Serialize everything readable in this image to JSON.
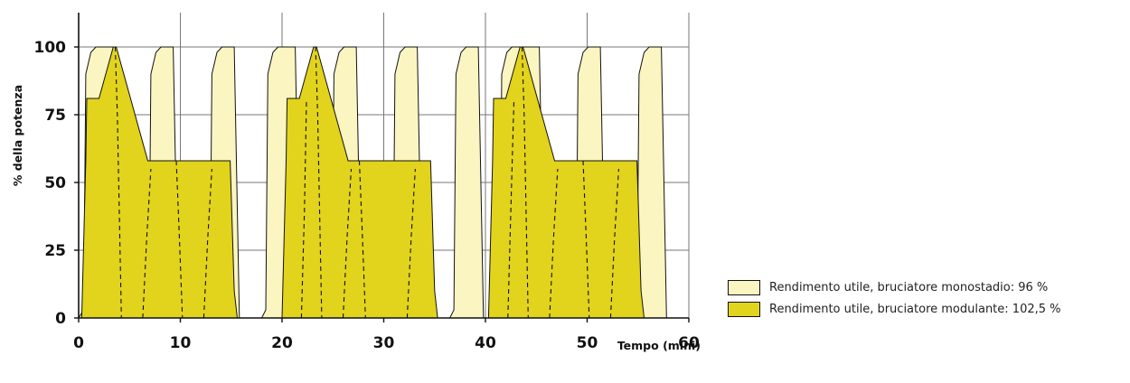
{
  "chart_data": {
    "type": "area",
    "xlabel": "Tempo (mini)",
    "ylabel": "% della potenza",
    "xlim": [
      0,
      60
    ],
    "ylim": [
      0,
      100
    ],
    "x_ticks": [
      "0",
      "10",
      "20",
      "30",
      "40",
      "50",
      "60"
    ],
    "y_ticks": [
      "0",
      "25",
      "50",
      "75",
      "100"
    ],
    "grid": true,
    "legend_position": "right",
    "colors": {
      "monostadio": "#fbf5c2",
      "modulante": "#e2d31c",
      "outline": "#111111"
    },
    "series": [
      {
        "name": "Rendimento utile, bruciatore monostadio: 96 %",
        "segments": [
          [
            [
              0,
              0
            ],
            [
              0.5,
              3
            ],
            [
              0.7,
              90
            ],
            [
              1.2,
              98
            ],
            [
              1.7,
              100
            ],
            [
              3.4,
              100
            ],
            [
              3.9,
              0
            ]
          ],
          [
            [
              6.5,
              0
            ],
            [
              6.9,
              3
            ],
            [
              7.1,
              90
            ],
            [
              7.6,
              98
            ],
            [
              8.1,
              100
            ],
            [
              9.3,
              100
            ],
            [
              9.8,
              0
            ]
          ],
          [
            [
              12.5,
              0
            ],
            [
              12.9,
              3
            ],
            [
              13.1,
              90
            ],
            [
              13.6,
              98
            ],
            [
              14.1,
              100
            ],
            [
              15.3,
              100
            ],
            [
              15.8,
              0
            ]
          ],
          [
            [
              18,
              0
            ],
            [
              18.4,
              3
            ],
            [
              18.6,
              90
            ],
            [
              19.1,
              98
            ],
            [
              19.6,
              100
            ],
            [
              21.3,
              100
            ],
            [
              21.8,
              0
            ]
          ],
          [
            [
              24.5,
              0
            ],
            [
              24.9,
              3
            ],
            [
              25.1,
              90
            ],
            [
              25.6,
              98
            ],
            [
              26.1,
              100
            ],
            [
              27.3,
              100
            ],
            [
              27.8,
              0
            ]
          ],
          [
            [
              30.5,
              0
            ],
            [
              30.9,
              3
            ],
            [
              31.1,
              90
            ],
            [
              31.6,
              98
            ],
            [
              32.1,
              100
            ],
            [
              33.3,
              100
            ],
            [
              33.8,
              0
            ]
          ],
          [
            [
              36.5,
              0
            ],
            [
              36.9,
              3
            ],
            [
              37.1,
              90
            ],
            [
              37.6,
              98
            ],
            [
              38.1,
              100
            ],
            [
              39.3,
              100
            ],
            [
              39.8,
              0
            ]
          ],
          [
            [
              41,
              0
            ],
            [
              41.4,
              3
            ],
            [
              41.6,
              90
            ],
            [
              42.1,
              98
            ],
            [
              42.6,
              100
            ],
            [
              45.3,
              100
            ],
            [
              45.8,
              0
            ]
          ],
          [
            [
              48.5,
              0
            ],
            [
              48.9,
              3
            ],
            [
              49.1,
              90
            ],
            [
              49.6,
              98
            ],
            [
              50.1,
              100
            ],
            [
              51.3,
              100
            ],
            [
              51.8,
              0
            ]
          ],
          [
            [
              54.5,
              0
            ],
            [
              54.9,
              3
            ],
            [
              55.1,
              90
            ],
            [
              55.6,
              98
            ],
            [
              56.1,
              100
            ],
            [
              57.3,
              100
            ],
            [
              57.8,
              0
            ]
          ]
        ]
      },
      {
        "name": "Rendimento utile, bruciatore modulante: 102,5 %",
        "segments": [
          [
            [
              0.3,
              0
            ],
            [
              0.7,
              58
            ],
            [
              0.8,
              81
            ],
            [
              2,
              81
            ],
            [
              3.4,
              100
            ],
            [
              3.7,
              100
            ],
            [
              6.8,
              58
            ],
            [
              14.9,
              58
            ],
            [
              15.3,
              10
            ],
            [
              15.6,
              0
            ]
          ],
          [
            [
              20,
              0
            ],
            [
              20.4,
              58
            ],
            [
              20.5,
              81
            ],
            [
              21.7,
              81
            ],
            [
              23.1,
              100
            ],
            [
              23.4,
              100
            ],
            [
              26.5,
              58
            ],
            [
              34.6,
              58
            ],
            [
              35,
              10
            ],
            [
              35.3,
              0
            ]
          ],
          [
            [
              40.3,
              0
            ],
            [
              40.7,
              58
            ],
            [
              40.8,
              81
            ],
            [
              42,
              81
            ],
            [
              43.4,
              100
            ],
            [
              43.7,
              100
            ],
            [
              46.8,
              58
            ],
            [
              54.9,
              58
            ],
            [
              55.3,
              10
            ],
            [
              55.6,
              0
            ]
          ]
        ]
      }
    ],
    "dashed_lines": [
      [
        [
          3.6,
          100
        ],
        [
          3.8,
          75
        ],
        [
          4.2,
          0
        ]
      ],
      [
        [
          6.3,
          0
        ],
        [
          6.7,
          30
        ],
        [
          7.1,
          55
        ]
      ],
      [
        [
          9.6,
          58
        ],
        [
          9.9,
          30
        ],
        [
          10.2,
          0
        ]
      ],
      [
        [
          12.3,
          0
        ],
        [
          12.7,
          30
        ],
        [
          13.1,
          55
        ]
      ],
      [
        [
          23.3,
          100
        ],
        [
          23.5,
          75
        ],
        [
          23.9,
          0
        ]
      ],
      [
        [
          21.9,
          0
        ],
        [
          22.2,
          40
        ],
        [
          22.4,
          80
        ]
      ],
      [
        [
          26,
          0
        ],
        [
          26.4,
          30
        ],
        [
          26.8,
          55
        ]
      ],
      [
        [
          27.6,
          58
        ],
        [
          27.9,
          30
        ],
        [
          28.2,
          0
        ]
      ],
      [
        [
          32.3,
          0
        ],
        [
          32.7,
          30
        ],
        [
          33.1,
          55
        ]
      ],
      [
        [
          43.6,
          100
        ],
        [
          43.8,
          75
        ],
        [
          44.2,
          0
        ]
      ],
      [
        [
          42.2,
          0
        ],
        [
          42.5,
          40
        ],
        [
          42.8,
          80
        ]
      ],
      [
        [
          46.3,
          0
        ],
        [
          46.7,
          30
        ],
        [
          47.1,
          55
        ]
      ],
      [
        [
          49.6,
          58
        ],
        [
          49.9,
          30
        ],
        [
          50.2,
          0
        ]
      ],
      [
        [
          52.3,
          0
        ],
        [
          52.7,
          30
        ],
        [
          53.1,
          55
        ]
      ]
    ]
  },
  "legend": {
    "mono_label": "Rendimento utile, bruciatore monostadio: 96 %",
    "mod_label": "Rendimento utile, bruciatore modulante: 102,5 %"
  }
}
